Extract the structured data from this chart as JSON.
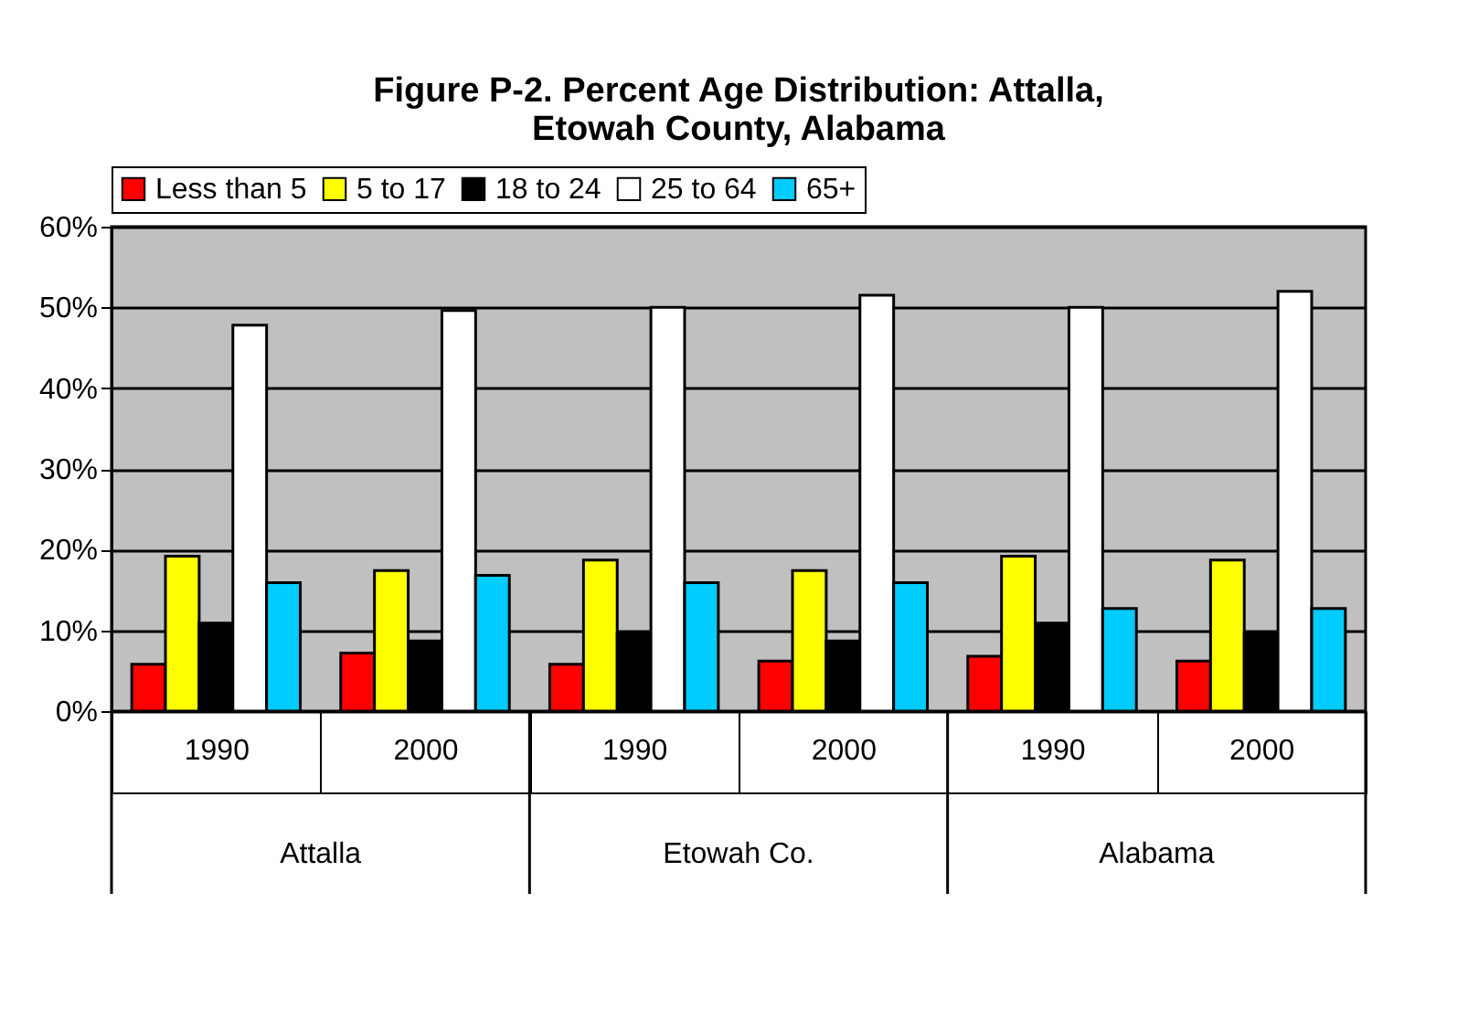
{
  "chart_data": {
    "type": "bar",
    "title": [
      "Figure P-2. Percent Age Distribution: Attalla,",
      "Etowah County, Alabama"
    ],
    "categories": [
      "1990",
      "2000",
      "1990",
      "2000",
      "1990",
      "2000"
    ],
    "annotations": [
      "Attalla",
      "Etowah Co.",
      "Alabama"
    ],
    "series": [
      {
        "name": "Less than 5",
        "color": "#ff0000",
        "values": [
          5.8,
          7.2,
          5.8,
          6.2,
          6.8,
          6.2
        ]
      },
      {
        "name": "5 to 17",
        "color": "#ffff00",
        "values": [
          19.2,
          17.4,
          18.7,
          17.4,
          19.2,
          18.7
        ]
      },
      {
        "name": "18 to 24",
        "color": "#000000",
        "values": [
          10.9,
          8.7,
          9.7,
          8.7,
          10.9,
          9.7
        ]
      },
      {
        "name": "25 to 64",
        "color": "#ffffff",
        "values": [
          47.8,
          49.6,
          50.0,
          51.5,
          50.0,
          52.0
        ]
      },
      {
        "name": "65+",
        "color": "#00ccff",
        "values": [
          15.9,
          16.8,
          15.9,
          15.9,
          12.7,
          12.7
        ]
      }
    ],
    "ylim": [
      0,
      60
    ],
    "yticks": [
      {
        "value": 0,
        "label": "0%"
      },
      {
        "value": 10,
        "label": "10%"
      },
      {
        "value": 20,
        "label": "20%"
      },
      {
        "value": 30,
        "label": "30%"
      },
      {
        "value": 40,
        "label": "40%"
      },
      {
        "value": 50,
        "label": "50%"
      },
      {
        "value": 60,
        "label": "60%"
      }
    ],
    "grid": "y",
    "legend": "top"
  }
}
